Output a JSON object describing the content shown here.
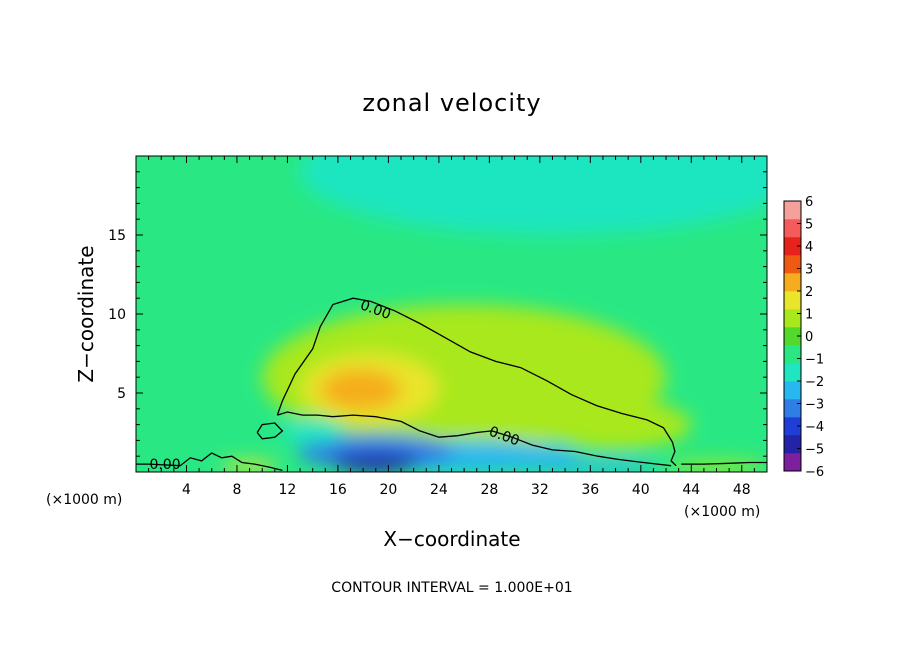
{
  "chart_data": {
    "type": "heatmap",
    "title": "zonal velocity",
    "xlabel": "X−coordinate",
    "ylabel": "Z−coordinate",
    "x_unit_left": "(×1000 m)",
    "x_unit_right": "(×1000 m)",
    "xlim": [
      0,
      50
    ],
    "ylim": [
      0,
      20
    ],
    "x_ticks": [
      4,
      8,
      12,
      16,
      20,
      24,
      28,
      32,
      36,
      40,
      44,
      48
    ],
    "x_tick_labels": [
      "4",
      "8",
      "12",
      "16",
      "20",
      "24",
      "28",
      "32",
      "36",
      "40",
      "44",
      "48"
    ],
    "y_ticks": [
      5,
      10,
      15
    ],
    "y_tick_labels": [
      "5",
      "10",
      "15"
    ],
    "contour_interval_text": "CONTOUR INTERVAL = 1.000E+01",
    "contour_label": "0.00",
    "contour_label_positions": [
      {
        "x": 19.0,
        "y": 10.3
      },
      {
        "x": 29.2,
        "y": 2.3
      },
      {
        "x": 2.3,
        "y": 0.5
      }
    ],
    "colorbar": {
      "levels": [
        -6,
        -5,
        -4,
        -3,
        -2,
        -1,
        0,
        1,
        2,
        3,
        4,
        5,
        6
      ],
      "labels": [
        "6",
        "5",
        "4",
        "3",
        "2",
        "1",
        "0",
        "−1",
        "−2",
        "−3",
        "−4",
        "−5",
        "−6"
      ],
      "colors": [
        "#7e1f9e",
        "#2323a8",
        "#1f3ed6",
        "#2f7ee6",
        "#27b8ef",
        "#1fe6c0",
        "#29e884",
        "#52d92c",
        "#a8e81d",
        "#e9e52b",
        "#f5ad1d",
        "#ee5a12",
        "#e7221a",
        "#f45c5c",
        "#f5a09a"
      ]
    },
    "contour_zero_outer": [
      [
        11.2,
        3.6
      ],
      [
        11.6,
        4.5
      ],
      [
        12.6,
        6.2
      ],
      [
        14.0,
        7.8
      ],
      [
        14.6,
        9.2
      ],
      [
        15.6,
        10.6
      ],
      [
        17.2,
        11.0
      ],
      [
        18.6,
        10.8
      ],
      [
        20.5,
        10.2
      ],
      [
        22.5,
        9.4
      ],
      [
        24.5,
        8.5
      ],
      [
        26.5,
        7.6
      ],
      [
        28.5,
        7.0
      ],
      [
        30.5,
        6.6
      ],
      [
        32.5,
        5.8
      ],
      [
        34.5,
        4.9
      ],
      [
        36.5,
        4.2
      ],
      [
        38.5,
        3.7
      ],
      [
        40.5,
        3.3
      ],
      [
        41.8,
        2.8
      ],
      [
        42.5,
        1.9
      ],
      [
        42.7,
        1.3
      ],
      [
        42.4,
        0.7
      ],
      [
        42.8,
        0.4
      ]
    ],
    "contour_zero_inner": [
      [
        11.2,
        3.6
      ],
      [
        12.0,
        3.8
      ],
      [
        13.2,
        3.6
      ],
      [
        14.4,
        3.6
      ],
      [
        15.6,
        3.5
      ],
      [
        17.2,
        3.6
      ],
      [
        19.0,
        3.5
      ],
      [
        21.0,
        3.2
      ],
      [
        22.5,
        2.6
      ],
      [
        24.0,
        2.2
      ],
      [
        25.5,
        2.3
      ],
      [
        27.0,
        2.5
      ],
      [
        28.2,
        2.6
      ]
    ],
    "contour_zero_lower": [
      [
        28.2,
        2.6
      ],
      [
        29.8,
        2.2
      ],
      [
        31.4,
        1.7
      ],
      [
        33.0,
        1.4
      ],
      [
        34.8,
        1.3
      ],
      [
        36.6,
        1.0
      ],
      [
        38.2,
        0.8
      ],
      [
        40.2,
        0.6
      ],
      [
        42.4,
        0.4
      ]
    ],
    "contour_zero_small": [
      [
        9.6,
        2.5
      ],
      [
        10.0,
        3.0
      ],
      [
        11.0,
        3.1
      ],
      [
        11.6,
        2.6
      ],
      [
        11.0,
        2.2
      ],
      [
        10.0,
        2.1
      ],
      [
        9.6,
        2.5
      ]
    ],
    "contour_zero_surface": [
      [
        0.0,
        0.5
      ],
      [
        1.0,
        0.5
      ],
      [
        3.5,
        0.4
      ],
      [
        4.3,
        0.9
      ],
      [
        5.2,
        0.7
      ],
      [
        6.0,
        1.2
      ],
      [
        6.8,
        0.9
      ],
      [
        7.6,
        1.0
      ],
      [
        8.4,
        0.6
      ],
      [
        9.4,
        0.5
      ],
      [
        10.6,
        0.3
      ],
      [
        11.6,
        0.1
      ]
    ],
    "contour_zero_right": [
      [
        43.2,
        0.5
      ],
      [
        45.0,
        0.5
      ],
      [
        47.0,
        0.55
      ],
      [
        48.6,
        0.6
      ],
      [
        50.0,
        0.6
      ]
    ],
    "field_blobs": [
      {
        "x": 17.8,
        "y": 5.2,
        "rx": 3.2,
        "ry": 1.3,
        "value": 3.6
      },
      {
        "x": 18.6,
        "y": 5.3,
        "rx": 5.4,
        "ry": 2.2,
        "value": 2.6
      },
      {
        "x": 20.0,
        "y": 6.0,
        "rx": 9.5,
        "ry": 3.6,
        "value": 1.8
      },
      {
        "x": 26.0,
        "y": 6.0,
        "rx": 16.0,
        "ry": 4.6,
        "value": 1.2
      },
      {
        "x": 38.0,
        "y": 3.0,
        "rx": 6.0,
        "ry": 1.6,
        "value": 1.1
      },
      {
        "x": 33.0,
        "y": 19.0,
        "rx": 20.0,
        "ry": 4.0,
        "value": -1.4
      },
      {
        "x": 19.0,
        "y": 1.3,
        "rx": 6.2,
        "ry": 1.1,
        "value": -3.6
      },
      {
        "x": 19.0,
        "y": 0.6,
        "rx": 3.5,
        "ry": 0.6,
        "value": -5.2
      },
      {
        "x": 26.0,
        "y": 1.0,
        "rx": 9.0,
        "ry": 1.0,
        "value": -2.3
      },
      {
        "x": 36.0,
        "y": 0.4,
        "rx": 5.5,
        "ry": 0.4,
        "value": -2.4
      },
      {
        "x": 9.0,
        "y": 0.35,
        "rx": 2.2,
        "ry": 0.35,
        "value": 2.8
      },
      {
        "x": 46.0,
        "y": 0.35,
        "rx": 4.0,
        "ry": 0.35,
        "value": 1.3
      },
      {
        "x": 14.0,
        "y": 2.6,
        "rx": 2.5,
        "ry": 0.8,
        "value": -1.7
      }
    ],
    "background_value": -0.4
  }
}
